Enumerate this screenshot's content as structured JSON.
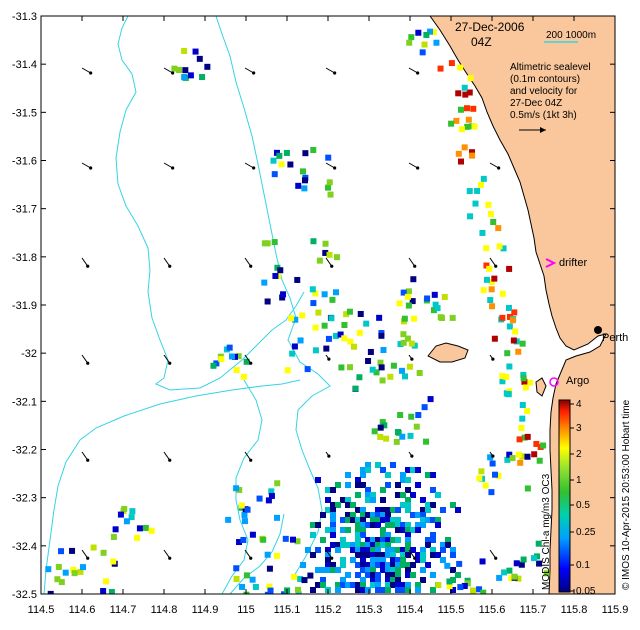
{
  "map": {
    "date": "27-Dec-2006",
    "time": "04Z",
    "scale_text": "200  1000m",
    "legend_lines": [
      "Altimetric sealevel",
      "(0.1m contours)",
      "and velocity for",
      "27-Dec 04Z",
      "0.5m/s (1kt 3h)"
    ],
    "places": {
      "drifter": "drifter",
      "perth": "Perth",
      "argo": "Argo"
    },
    "credit": "© IMOS 10-Apr-2015 20:53:00 Hobart time",
    "colorbar_label": "MODIS Chl-a mg/m3 OC3",
    "colorbar_ticks": [
      "4",
      "3",
      "2",
      "1",
      "0.5",
      "0.25",
      "0.1",
      "0.05"
    ],
    "lat_ticks": [
      "-31.3",
      "-31.4",
      "-31.5",
      "-31.6",
      "-31.7",
      "-31.8",
      "-31.9",
      "-32",
      "-32.1",
      "-32.2",
      "-32.3",
      "-32.4",
      "-32.5"
    ],
    "lon_ticks": [
      "114.5",
      "114.6",
      "114.7",
      "114.8",
      "114.9",
      "115",
      "115.1",
      "115.2",
      "115.3",
      "115.4",
      "115.5",
      "115.6",
      "115.7",
      "115.8",
      "115.9"
    ],
    "colors": {
      "land": "#f9c79b",
      "contour": "#34d4e4",
      "magenta": "#ff00ff"
    }
  }
}
